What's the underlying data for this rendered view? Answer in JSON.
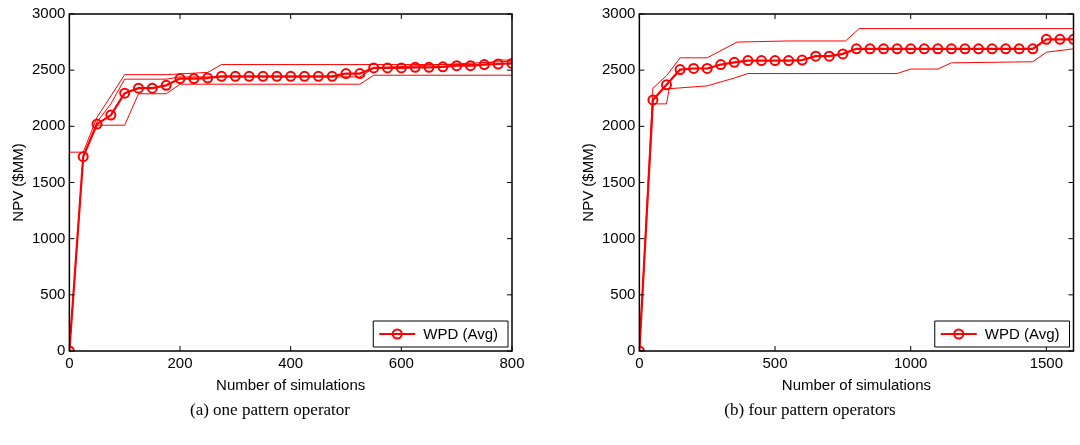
{
  "chart_data": [
    {
      "type": "line",
      "title": "(a)  one pattern operator",
      "xlabel": "Number of simulations",
      "ylabel": "NPV ($MM)",
      "xlim": [
        0,
        800
      ],
      "xticks": [
        0,
        200,
        400,
        600,
        800
      ],
      "ylim": [
        0,
        3000
      ],
      "yticks": [
        0,
        500,
        1000,
        1500,
        2000,
        2500,
        3000
      ],
      "grid": false,
      "legend": "bottom right",
      "marker": "circle",
      "line_style": "solid",
      "series": [
        {
          "color": "#ff0000",
          "marker": "none",
          "x": [
            0,
            25,
            50,
            100,
            175,
            250,
            275,
            500,
            750,
            775,
            800
          ],
          "values": [
            1770,
            1770,
            2080,
            2460,
            2460,
            2480,
            2550,
            2550,
            2550,
            2590,
            2590
          ]
        },
        {
          "color": "#ff0000",
          "marker": "none",
          "x": [
            0,
            25,
            50,
            100,
            125,
            175,
            200,
            525,
            550,
            800
          ],
          "values": [
            0,
            1730,
            2010,
            2010,
            2290,
            2290,
            2375,
            2375,
            2455,
            2455
          ]
        },
        {
          "color": "#ff0000",
          "marker": "none",
          "x": [
            0,
            25,
            50,
            75,
            100,
            175,
            200,
            525,
            550,
            800
          ],
          "values": [
            0,
            1730,
            2040,
            2200,
            2420,
            2420,
            2440,
            2440,
            2520,
            2580
          ]
        },
        {
          "name": "WPD (Avg)",
          "color": "#ff0000",
          "x": [
            0,
            25,
            50,
            75,
            100,
            125,
            150,
            175,
            200,
            225,
            250,
            275,
            300,
            325,
            350,
            375,
            400,
            425,
            450,
            475,
            500,
            525,
            550,
            575,
            600,
            625,
            650,
            675,
            700,
            725,
            750,
            775,
            800
          ],
          "values": [
            0,
            1730,
            2020,
            2100,
            2295,
            2340,
            2340,
            2365,
            2425,
            2425,
            2430,
            2445,
            2445,
            2445,
            2445,
            2445,
            2445,
            2445,
            2445,
            2445,
            2470,
            2470,
            2520,
            2520,
            2520,
            2525,
            2525,
            2530,
            2540,
            2540,
            2550,
            2555,
            2560
          ]
        }
      ]
    },
    {
      "type": "line",
      "title": "(b)  four pattern operators",
      "xlabel": "Number of simulations",
      "ylabel": "NPV ($MM)",
      "xlim": [
        0,
        1600
      ],
      "xticks": [
        0,
        500,
        1000,
        1500
      ],
      "ylim": [
        0,
        3000
      ],
      "yticks": [
        0,
        500,
        1000,
        1500,
        2000,
        2500,
        3000
      ],
      "grid": false,
      "legend": "bottom right",
      "marker": "circle",
      "line_style": "solid",
      "series": [
        {
          "color": "#ff0000",
          "marker": "none",
          "x": [
            0,
            50,
            100,
            150,
            250,
            360,
            550,
            760,
            810,
            1600
          ],
          "values": [
            0,
            2340,
            2450,
            2610,
            2610,
            2750,
            2760,
            2760,
            2870,
            2870
          ]
        },
        {
          "color": "#ff0000",
          "marker": "none",
          "x": [
            0,
            50,
            100,
            110,
            250,
            350,
            400,
            950,
            1000,
            1100,
            1150,
            1450,
            1500,
            1600
          ],
          "values": [
            0,
            2200,
            2200,
            2335,
            2360,
            2430,
            2470,
            2470,
            2510,
            2510,
            2565,
            2575,
            2660,
            2690
          ]
        },
        {
          "name": "WPD (Avg)",
          "color": "#ff0000",
          "x": [
            0,
            50,
            100,
            150,
            200,
            250,
            300,
            350,
            400,
            450,
            500,
            550,
            600,
            650,
            700,
            750,
            800,
            850,
            900,
            950,
            1000,
            1050,
            1100,
            1150,
            1200,
            1250,
            1300,
            1350,
            1400,
            1450,
            1500,
            1550,
            1600
          ],
          "values": [
            0,
            2235,
            2370,
            2505,
            2515,
            2515,
            2550,
            2570,
            2585,
            2585,
            2585,
            2585,
            2590,
            2625,
            2625,
            2645,
            2690,
            2690,
            2690,
            2690,
            2690,
            2690,
            2690,
            2690,
            2690,
            2690,
            2690,
            2690,
            2690,
            2690,
            2775,
            2775,
            2775
          ]
        }
      ]
    }
  ]
}
